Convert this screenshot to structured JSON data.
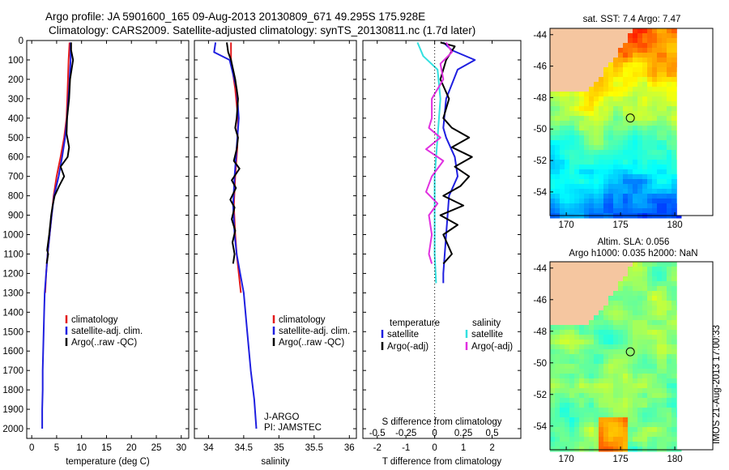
{
  "header": {
    "title_line1": "Argo profile: JA 5901600_165 09-Aug-2013 20130809_671 49.295S 175.928E",
    "title_line2": "Climatology: CARS2009. Satellite-adjusted climatology: synTS_20130811.nc (1.7d later)"
  },
  "colors": {
    "climatology": "#e31a1c",
    "satellite": "#1f1fe0",
    "argo": "#000000",
    "satellite_salinity": "#33e0e0",
    "argo_salinity_adj": "#e030e0",
    "land": "#f5c6a0"
  },
  "chart_data": [
    {
      "type": "line",
      "id": "temperature",
      "xlabel": "temperature (deg C)",
      "xlim": [
        -1,
        31.5
      ],
      "ylim": [
        2050,
        0
      ],
      "x_ticks": [
        0,
        5,
        10,
        15,
        20,
        25,
        30
      ],
      "y_ticks": [
        0,
        100,
        200,
        300,
        400,
        500,
        600,
        700,
        800,
        900,
        1000,
        1100,
        1200,
        1300,
        1400,
        1500,
        1600,
        1700,
        1800,
        1900,
        2000
      ],
      "legend": [
        "climatology",
        "satellite-adj. clim.",
        "Argo(..raw -QC)"
      ],
      "series": [
        {
          "name": "climatology",
          "color_key": "climatology",
          "points": [
            [
              7.6,
              10
            ],
            [
              7.4,
              100
            ],
            [
              7.2,
              250
            ],
            [
              7.0,
              400
            ],
            [
              6.5,
              500
            ],
            [
              5.8,
              600
            ],
            [
              5.0,
              700
            ],
            [
              4.4,
              800
            ],
            [
              4.0,
              900
            ],
            [
              3.6,
              1000
            ],
            [
              3.2,
              1100
            ],
            [
              2.9,
              1200
            ],
            [
              2.7,
              1300
            ]
          ]
        },
        {
          "name": "satellite-adj. clim.",
          "color_key": "satellite",
          "points": [
            [
              7.8,
              10
            ],
            [
              7.8,
              100
            ],
            [
              7.5,
              250
            ],
            [
              7.1,
              400
            ],
            [
              6.7,
              500
            ],
            [
              6.1,
              600
            ],
            [
              5.4,
              700
            ],
            [
              4.5,
              800
            ],
            [
              4.0,
              900
            ],
            [
              3.6,
              1000
            ],
            [
              3.2,
              1100
            ],
            [
              2.9,
              1200
            ],
            [
              2.6,
              1300
            ],
            [
              2.5,
              1400
            ],
            [
              2.4,
              1500
            ],
            [
              2.3,
              1600
            ],
            [
              2.2,
              1700
            ],
            [
              2.2,
              1800
            ],
            [
              2.1,
              1900
            ],
            [
              2.1,
              2000
            ]
          ]
        },
        {
          "name": "Argo(..raw -QC)",
          "color_key": "argo",
          "points": [
            [
              7.9,
              10
            ],
            [
              7.9,
              50
            ],
            [
              8.3,
              100
            ],
            [
              7.7,
              200
            ],
            [
              7.5,
              300
            ],
            [
              7.1,
              400
            ],
            [
              7.0,
              480
            ],
            [
              7.5,
              550
            ],
            [
              7.2,
              600
            ],
            [
              5.8,
              650
            ],
            [
              6.5,
              700
            ],
            [
              5.5,
              750
            ],
            [
              4.6,
              800
            ],
            [
              4.2,
              850
            ],
            [
              3.9,
              900
            ],
            [
              3.5,
              1000
            ],
            [
              3.1,
              1080
            ],
            [
              3.3,
              1100
            ],
            [
              3.0,
              1150
            ]
          ]
        }
      ]
    },
    {
      "type": "line",
      "id": "salinity",
      "xlabel": "salinity",
      "xlim": [
        33.8,
        36.1
      ],
      "ylim": [
        2050,
        0
      ],
      "x_ticks": [
        34,
        34.5,
        35,
        35.5,
        36
      ],
      "legend": [
        "climatology",
        "satellite-adj. clim.",
        "Argo(..raw -QC)"
      ],
      "annotation": [
        "J-ARGO",
        "PI: JAMSTEC"
      ],
      "series": [
        {
          "name": "climatology",
          "color_key": "climatology",
          "points": [
            [
              34.32,
              10
            ],
            [
              34.32,
              100
            ],
            [
              34.38,
              250
            ],
            [
              34.42,
              400
            ],
            [
              34.41,
              550
            ],
            [
              34.38,
              700
            ],
            [
              34.36,
              850
            ],
            [
              34.38,
              1000
            ],
            [
              34.4,
              1100
            ],
            [
              34.43,
              1200
            ],
            [
              34.46,
              1300
            ]
          ]
        },
        {
          "name": "satellite-adj. clim.",
          "color_key": "satellite",
          "points": [
            [
              34.1,
              10
            ],
            [
              34.08,
              60
            ],
            [
              34.3,
              100
            ],
            [
              34.4,
              250
            ],
            [
              34.43,
              400
            ],
            [
              34.4,
              550
            ],
            [
              34.37,
              700
            ],
            [
              34.35,
              850
            ],
            [
              34.37,
              1000
            ],
            [
              34.4,
              1100
            ],
            [
              34.45,
              1200
            ],
            [
              34.5,
              1300
            ],
            [
              34.55,
              1500
            ],
            [
              34.6,
              1700
            ],
            [
              34.65,
              1850
            ],
            [
              34.68,
              2000
            ]
          ]
        },
        {
          "name": "Argo(..raw -QC)",
          "color_key": "argo",
          "points": [
            [
              34.26,
              10
            ],
            [
              34.28,
              60
            ],
            [
              34.32,
              100
            ],
            [
              34.38,
              200
            ],
            [
              34.42,
              300
            ],
            [
              34.4,
              400
            ],
            [
              34.38,
              450
            ],
            [
              34.42,
              500
            ],
            [
              34.4,
              560
            ],
            [
              34.36,
              620
            ],
            [
              34.44,
              660
            ],
            [
              34.33,
              720
            ],
            [
              34.39,
              760
            ],
            [
              34.31,
              820
            ],
            [
              34.37,
              860
            ],
            [
              34.33,
              920
            ],
            [
              34.38,
              980
            ],
            [
              34.34,
              1040
            ],
            [
              34.37,
              1100
            ],
            [
              34.35,
              1150
            ]
          ]
        }
      ]
    },
    {
      "type": "line",
      "id": "differences",
      "xlabel": "T difference from climatology",
      "xlabel2": "S difference from climatology",
      "xlim": [
        -2.5,
        3.0
      ],
      "ylim": [
        2050,
        0
      ],
      "x_ticks": [
        -2,
        -1,
        0,
        1,
        2
      ],
      "x2_tick_labels": [
        "-0.5",
        "-0.25",
        "0",
        "0.25",
        "0.5"
      ],
      "x2_tick_positions": [
        -2,
        -1,
        0,
        1,
        2
      ],
      "legend_headers": [
        "temperature",
        "salinity"
      ],
      "legend": [
        "satellite",
        "Argo(-adj)",
        "satellite",
        "Argo(-adj)"
      ],
      "series": [
        {
          "name": "satellite",
          "color_key": "satellite",
          "points": [
            [
              0.3,
              10
            ],
            [
              0.6,
              50
            ],
            [
              1.4,
              100
            ],
            [
              0.8,
              150
            ],
            [
              0.4,
              300
            ],
            [
              0.3,
              450
            ],
            [
              0.4,
              500
            ],
            [
              0.7,
              600
            ],
            [
              0.8,
              700
            ],
            [
              0.5,
              800
            ],
            [
              0.4,
              1000
            ],
            [
              0.3,
              1200
            ],
            [
              0.3,
              1250
            ]
          ]
        },
        {
          "name": "Argo(-adj)",
          "color_key": "argo",
          "points": [
            [
              0.2,
              10
            ],
            [
              0.7,
              30
            ],
            [
              0.4,
              100
            ],
            [
              0.2,
              200
            ],
            [
              0.5,
              300
            ],
            [
              0.3,
              400
            ],
            [
              0.6,
              450
            ],
            [
              1.2,
              500
            ],
            [
              0.6,
              550
            ],
            [
              1.3,
              600
            ],
            [
              0.7,
              650
            ],
            [
              1.2,
              700
            ],
            [
              0.9,
              750
            ],
            [
              0.3,
              800
            ],
            [
              1.0,
              850
            ],
            [
              0.2,
              900
            ],
            [
              0.8,
              950
            ],
            [
              0.3,
              1000
            ],
            [
              0.6,
              1100
            ],
            [
              0.3,
              1150
            ]
          ]
        },
        {
          "name": "satellite",
          "color_key": "satellite_salinity",
          "points": [
            [
              -0.6,
              10
            ],
            [
              -0.4,
              80
            ],
            [
              0.1,
              150
            ],
            [
              0.2,
              300
            ],
            [
              0.1,
              500
            ],
            [
              0.0,
              700
            ],
            [
              0.0,
              900
            ],
            [
              0.0,
              1100
            ],
            [
              0.05,
              1250
            ]
          ]
        },
        {
          "name": "Argo(-adj)",
          "color_key": "argo_salinity_adj",
          "points": [
            [
              0.4,
              10
            ],
            [
              0.6,
              60
            ],
            [
              0.2,
              120
            ],
            [
              0.3,
              200
            ],
            [
              -0.1,
              300
            ],
            [
              -0.1,
              400
            ],
            [
              -0.2,
              450
            ],
            [
              0.2,
              500
            ],
            [
              -0.3,
              560
            ],
            [
              0.3,
              620
            ],
            [
              -0.1,
              700
            ],
            [
              -0.3,
              780
            ],
            [
              0.1,
              840
            ],
            [
              -0.2,
              900
            ],
            [
              -0.1,
              1000
            ],
            [
              -0.2,
              1100
            ],
            [
              -0.1,
              1150
            ]
          ]
        }
      ]
    },
    {
      "type": "heatmap",
      "id": "sst_map",
      "title": "sat. SST: 7.4 Argo: 7.47",
      "xlim": [
        168.5,
        183.5
      ],
      "ylim": [
        -55.5,
        -43.6
      ],
      "x_ticks": [
        170,
        175,
        180
      ],
      "y_ticks": [
        -44,
        -46,
        -48,
        -50,
        -52,
        -54
      ],
      "profile_position": [
        175.9,
        -49.3
      ]
    },
    {
      "type": "heatmap",
      "id": "sla_map",
      "title": "Altim. SLA: 0.056",
      "subtitle": "Argo h1000: 0.035 h2000: NaN",
      "xlim": [
        168.5,
        183.5
      ],
      "ylim": [
        -55.5,
        -43.6
      ],
      "x_ticks": [
        170,
        175,
        180
      ],
      "y_ticks": [
        -44,
        -46,
        -48,
        -50,
        -52,
        -54
      ],
      "profile_position": [
        175.9,
        -49.3
      ]
    }
  ],
  "footer": {
    "credit": "IMOS 21-Aug-2013 17:00:33"
  }
}
